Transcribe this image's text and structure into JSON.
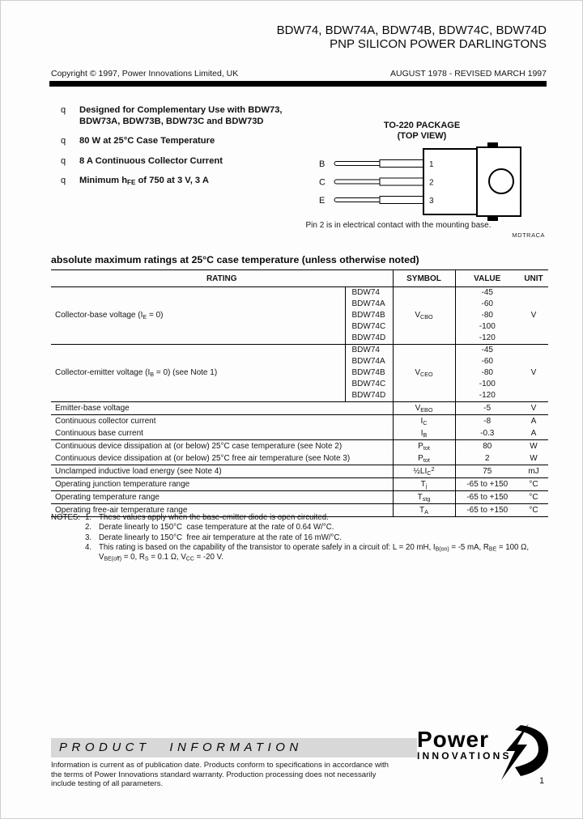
{
  "header": {
    "title_line1": "BDW74, BDW74A, BDW74B, BDW74C, BDW74D",
    "title_line2": "PNP SILICON POWER DARLINGTONS",
    "copyright": "Copyright © 1997, Power Innovations Limited, UK",
    "revision": "AUGUST 1978 - REVISED MARCH 1997"
  },
  "features": [
    {
      "bullet": "q",
      "text": "Designed for Complementary Use with BDW73, BDW73A, BDW73B, BDW73C and BDW73D"
    },
    {
      "bullet": "q",
      "text": "80 W at 25°C Case Temperature"
    },
    {
      "bullet": "q",
      "text": "8 A Continuous Collector Current"
    },
    {
      "bullet": "q",
      "text": "Minimum h~FE~ of 750 at 3 V, 3 A"
    }
  ],
  "package_diagram": {
    "title_line1": "TO-220 PACKAGE",
    "title_line2": "(TOP VIEW)",
    "pin_labels": [
      "B",
      "C",
      "E"
    ],
    "pin_numbers": [
      "1",
      "2",
      "3"
    ],
    "caption": "Pin 2 is in electrical contact with the mounting base.",
    "drawing_code": "MDTRACA"
  },
  "ratings_table": {
    "title": "absolute maximum ratings at 25°C case temperature (unless otherwise noted)",
    "headers": {
      "rating": "RATING",
      "symbol": "SYMBOL",
      "value": "VALUE",
      "unit": "UNIT"
    },
    "rows": [
      {
        "type": "group",
        "rating": "Collector-base voltage (I~E~ = 0)",
        "symbol": "V~CBO~",
        "unit": "V",
        "devices": [
          "BDW74",
          "BDW74A",
          "BDW74B",
          "BDW74C",
          "BDW74D"
        ],
        "values": [
          "-45",
          "-60",
          "-80",
          "-100",
          "-120"
        ]
      },
      {
        "type": "group",
        "rating": "Collector-emitter voltage (I~B~ = 0) (see Note 1)",
        "symbol": "V~CEO~",
        "unit": "V",
        "devices": [
          "BDW74",
          "BDW74A",
          "BDW74B",
          "BDW74C",
          "BDW74D"
        ],
        "values": [
          "-45",
          "-60",
          "-80",
          "-100",
          "-120"
        ]
      },
      {
        "type": "single",
        "rating": "Emitter-base voltage",
        "symbol": "V~EBO~",
        "value": "-5",
        "unit": "V",
        "rule_below": true
      },
      {
        "type": "single",
        "rating": "Continuous collector current",
        "symbol": "I~C~",
        "value": "-8",
        "unit": "A",
        "rule_below": false
      },
      {
        "type": "single",
        "rating": "Continuous base current",
        "symbol": "I~B~",
        "value": "-0.3",
        "unit": "A",
        "rule_below": true
      },
      {
        "type": "single",
        "rating": "Continuous device dissipation at (or below) 25°C case temperature (see Note 2)",
        "symbol": "P~tot~",
        "value": "80",
        "unit": "W",
        "rule_below": false
      },
      {
        "type": "single",
        "rating": "Continuous device dissipation at (or below) 25°C free air temperature (see Note 3)",
        "symbol": "P~tot~",
        "value": "2",
        "unit": "W",
        "rule_below": true
      },
      {
        "type": "single",
        "rating": "Unclamped inductive load energy (see Note 4)",
        "symbol": "½LI~C~^2^",
        "value": "75",
        "unit": "mJ",
        "rule_below": true
      },
      {
        "type": "single",
        "rating": "Operating junction temperature range",
        "symbol": "T~j~",
        "value": "-65 to +150",
        "unit": "°C",
        "rule_below": true
      },
      {
        "type": "single",
        "rating": "Operating temperature range",
        "symbol": "T~stg~",
        "value": "-65 to +150",
        "unit": "°C",
        "rule_below": true
      },
      {
        "type": "single",
        "rating": "Operating free-air temperature range",
        "symbol": "T~A~",
        "value": "-65 to +150",
        "unit": "°C",
        "rule_below": true
      }
    ]
  },
  "notes": {
    "label": "NOTES:",
    "items": [
      "These values apply when the base-emitter diode is open circuited.",
      "Derate linearly to 150°C  case temperature at the rate of 0.64 W/°C.",
      "Derate linearly to 150°C  free air temperature at the rate of 16 mW/°C.",
      "This rating is based on the capability of the transistor to operate safely in a circuit of: L = 20 mH, I~B(on)~ = -5 mA, R~BE~ = 100 Ω,\nV~BE(off)~ = 0, R~S~ = 0.1 Ω, V~CC~ = -20 V."
    ]
  },
  "footer": {
    "band_text": "PRODUCT INFORMATION",
    "disclaimer": "Information is current as of publication date. Products conform to specifications in accordance with the terms of Power Innovations standard warranty. Production processing does not necessarily include testing of all parameters.",
    "logo_text_line1": "Power",
    "logo_text_line2": "INNOVATIONS",
    "page_number": "1"
  },
  "colors": {
    "ink": "#000000",
    "band_gray": "#d8d8d8",
    "paper": "#fdfdfd"
  }
}
